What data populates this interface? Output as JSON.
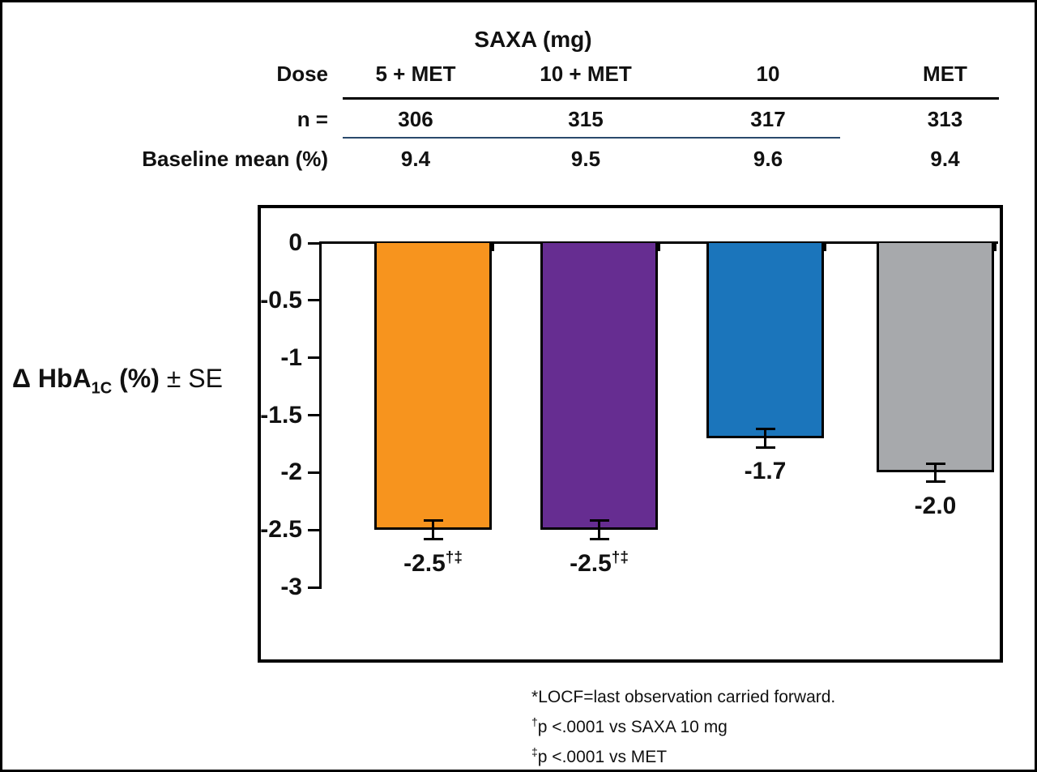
{
  "header_table": {
    "title": "SAXA (mg)",
    "rows": [
      {
        "label": "Dose",
        "values": [
          "5 + MET",
          "10 + MET",
          "10",
          "MET"
        ]
      },
      {
        "label": "n =",
        "values": [
          "306",
          "315",
          "317",
          "313"
        ]
      },
      {
        "label": "Baseline mean (%)",
        "values": [
          "9.4",
          "9.5",
          "9.6",
          "9.4"
        ]
      }
    ]
  },
  "y_axis_label": {
    "prefix": "Δ HbA",
    "sub": "1C",
    "mid": " (%) ",
    "suffix": "± SE"
  },
  "chart_data": {
    "type": "bar",
    "categories": [
      "5 + MET",
      "10 + MET",
      "10",
      "MET"
    ],
    "values": [
      -2.5,
      -2.5,
      -1.7,
      -2.0
    ],
    "errors": [
      0.08,
      0.08,
      0.08,
      0.08
    ],
    "labels": [
      "-2.5",
      "-2.5",
      "-1.7",
      "-2.0"
    ],
    "label_superscripts": [
      "†‡",
      "†‡",
      "",
      ""
    ],
    "colors": [
      "#F7941E",
      "#662D91",
      "#1B75BB",
      "#A7A9AC"
    ],
    "title": "",
    "xlabel": "",
    "ylabel": "Δ HbA1C (%) ± SE",
    "ylim": [
      -3,
      0
    ],
    "yticks": [
      0,
      -0.5,
      -1,
      -1.5,
      -2,
      -2.5,
      -3
    ],
    "ytick_labels": [
      "0",
      "-0.5",
      "-1",
      "-1.5",
      "-2",
      "-2.5",
      "-3"
    ],
    "grid": false,
    "legend": "none"
  },
  "footnotes": [
    {
      "marker": "*",
      "sup": false,
      "text": "LOCF=last observation carried forward."
    },
    {
      "marker": "†",
      "sup": true,
      "text": "p <.0001 vs SAXA 10 mg"
    },
    {
      "marker": "‡",
      "sup": true,
      "text": "p <.0001 vs MET"
    }
  ]
}
